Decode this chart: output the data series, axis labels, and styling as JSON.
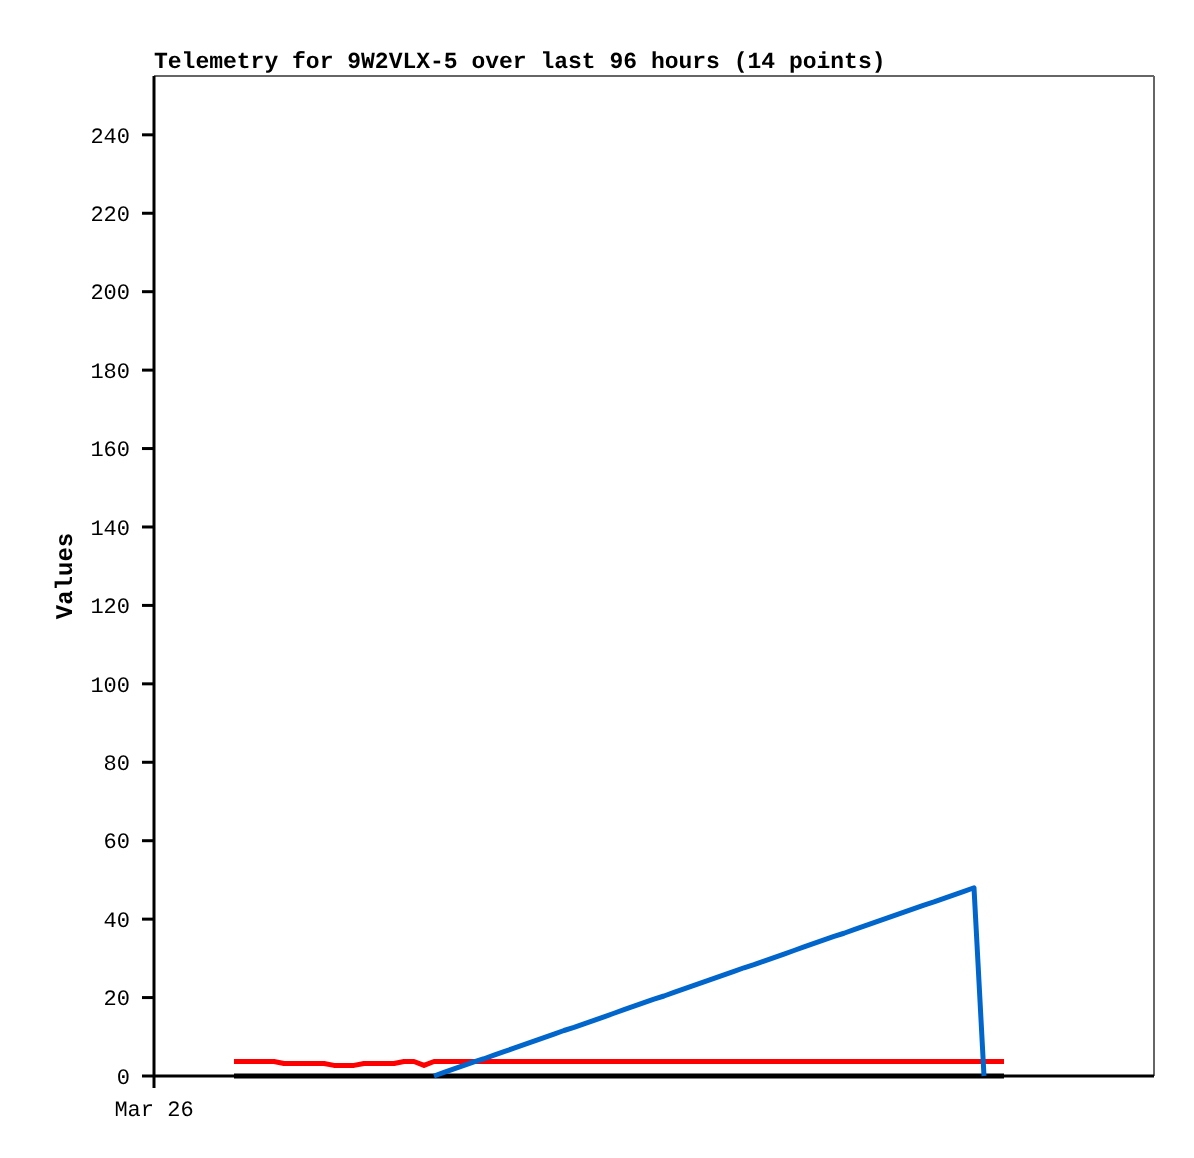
{
  "chart_data": {
    "type": "line",
    "title": "Telemetry for 9W2VLX-5 over last 96 hours (14 points)",
    "ylabel": "Values",
    "categories": [
      "Mar 26",
      null,
      null,
      null,
      null,
      null,
      null,
      null,
      null,
      null,
      null,
      null,
      null,
      null,
      null,
      null,
      null,
      null,
      null,
      null,
      null,
      null,
      null,
      null,
      null,
      null,
      null,
      null,
      null,
      null,
      null,
      null,
      null,
      null,
      null,
      null,
      null,
      null,
      null,
      null,
      null,
      null,
      null,
      null,
      null,
      null,
      null,
      null,
      null,
      null,
      null,
      null,
      null,
      null,
      null,
      null,
      null,
      null,
      null,
      null,
      null,
      null,
      null,
      null,
      null,
      null,
      null,
      null,
      null,
      null,
      null,
      null,
      null,
      null,
      null,
      null,
      null,
      null,
      null,
      null,
      null,
      null,
      null,
      null,
      null,
      null,
      null,
      null,
      null,
      null,
      null,
      null,
      null,
      null,
      null,
      null,
      null,
      null,
      null,
      null,
      null
    ],
    "ylim": [
      0,
      255
    ],
    "yticks": [
      0,
      20,
      40,
      60,
      80,
      100,
      120,
      140,
      160,
      180,
      200,
      220,
      240
    ],
    "series": [
      {
        "color": "#000000",
        "values": [
          null,
          null,
          null,
          null,
          null,
          null,
          null,
          null,
          0,
          0,
          0,
          0,
          0,
          0,
          0,
          0,
          0,
          0,
          0,
          0,
          0,
          0,
          0,
          0,
          0,
          0,
          0,
          0,
          0,
          0,
          0,
          0,
          0,
          0,
          0,
          0,
          0,
          0,
          0,
          0,
          0,
          0,
          0,
          0,
          0,
          0,
          0,
          0,
          0,
          0,
          0,
          0,
          0,
          0,
          0,
          0,
          0,
          0,
          0,
          0,
          0,
          0,
          0,
          0,
          0,
          0,
          0,
          0,
          0,
          0,
          0,
          0,
          0,
          0,
          0,
          0,
          0,
          0,
          0,
          0,
          0,
          0,
          0,
          0,
          0,
          0,
          null,
          null,
          null,
          null,
          null,
          null,
          null,
          null,
          null,
          null,
          null,
          null,
          null,
          null,
          null
        ]
      },
      {
        "color": "#ff0000",
        "values": [
          null,
          null,
          null,
          null,
          null,
          null,
          null,
          null,
          3.7,
          3.7,
          3.7,
          3.7,
          3.7,
          3.2,
          3.2,
          3.2,
          3.2,
          3.2,
          2.7,
          2.7,
          2.7,
          3.2,
          3.2,
          3.2,
          3.2,
          3.7,
          3.7,
          2.7,
          3.7,
          3.7,
          3.7,
          3.7,
          3.7,
          3.7,
          3.7,
          3.7,
          3.7,
          3.7,
          3.7,
          3.7,
          3.7,
          3.7,
          3.7,
          3.7,
          3.7,
          3.7,
          3.7,
          3.7,
          3.7,
          3.7,
          3.7,
          3.7,
          3.7,
          3.7,
          3.7,
          3.7,
          3.7,
          3.7,
          3.7,
          3.7,
          3.7,
          3.7,
          3.7,
          3.7,
          3.7,
          3.7,
          3.7,
          3.7,
          3.7,
          3.7,
          3.7,
          3.7,
          3.7,
          3.7,
          3.7,
          3.7,
          3.7,
          3.7,
          3.7,
          3.7,
          3.7,
          3.7,
          3.7,
          3.7,
          3.7,
          3.7,
          null,
          null,
          null,
          null,
          null,
          null,
          null,
          null,
          null,
          null,
          null,
          null,
          null,
          null,
          null
        ]
      },
      {
        "color": "#0066cc",
        "values": [
          null,
          null,
          null,
          null,
          null,
          null,
          null,
          null,
          null,
          null,
          null,
          null,
          null,
          null,
          null,
          null,
          null,
          null,
          null,
          null,
          null,
          null,
          null,
          null,
          null,
          null,
          null,
          null,
          0,
          0.9,
          1.8,
          2.7,
          3.6,
          4.4,
          5.3,
          6.2,
          7.1,
          8,
          8.9,
          9.8,
          10.7,
          11.6,
          12.4,
          13.3,
          14.2,
          15.1,
          16,
          16.9,
          17.8,
          18.7,
          19.6,
          20.4,
          21.3,
          22.2,
          23.1,
          24,
          24.9,
          25.8,
          26.7,
          27.6,
          28.4,
          29.3,
          30.2,
          31.1,
          32,
          32.9,
          33.8,
          34.7,
          35.6,
          36.4,
          37.3,
          38.2,
          39.1,
          40,
          40.9,
          41.8,
          42.7,
          43.6,
          44.4,
          45.3,
          46.2,
          47.1,
          48,
          0,
          null,
          null,
          null,
          null,
          null,
          null,
          null,
          null,
          null,
          null,
          null,
          null,
          null,
          null,
          null,
          null,
          null
        ]
      }
    ]
  }
}
